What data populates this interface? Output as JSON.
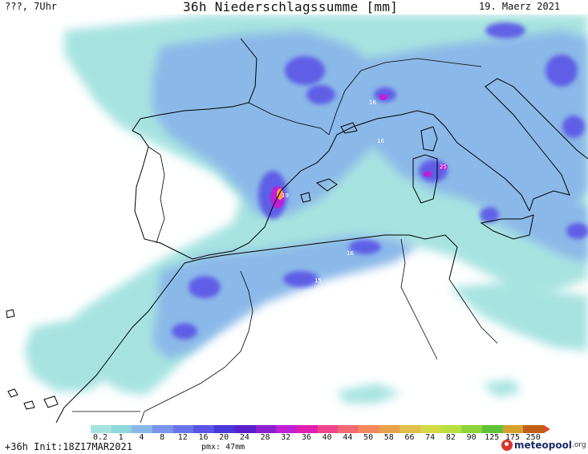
{
  "header": {
    "left": "???, 7Uhr",
    "title": "36h Niederschlagssumme [mm]",
    "date": "19. Maerz 2021"
  },
  "footer": {
    "run": "+36h Init:18Z17MAR2021",
    "pmx": "pmx: 47mm",
    "brand": "meteopool",
    "brand_tld": ".org"
  },
  "legend": {
    "labels": [
      "0.2",
      "1",
      "4",
      "8",
      "12",
      "16",
      "20",
      "24",
      "28",
      "32",
      "36",
      "40",
      "44",
      "50",
      "58",
      "66",
      "74",
      "82",
      "90",
      "125",
      "175",
      "250"
    ],
    "colors": [
      "#a6e3e0",
      "#8fd8dc",
      "#8ab8e8",
      "#7a95ea",
      "#6a74ea",
      "#5a55e6",
      "#4b36dc",
      "#5a1fcc",
      "#8a1fd0",
      "#c01fd8",
      "#e01fb0",
      "#f0458a",
      "#f36a72",
      "#f28a5e",
      "#e8a24e",
      "#e0c04a",
      "#d6da46",
      "#b8e040",
      "#8ed43a",
      "#5fc23a",
      "#d6a02e",
      "#c06018"
    ],
    "arrow_color": "#e04a30"
  },
  "map_labels": [
    "16",
    "16",
    "25",
    "19",
    "16",
    "15"
  ],
  "colors": {
    "light_precip": "#a6e3e0",
    "moderate_precip": "#8ab8e8",
    "heavy_precip": "#5a55e6",
    "extreme_precip": "#c01fd8"
  }
}
